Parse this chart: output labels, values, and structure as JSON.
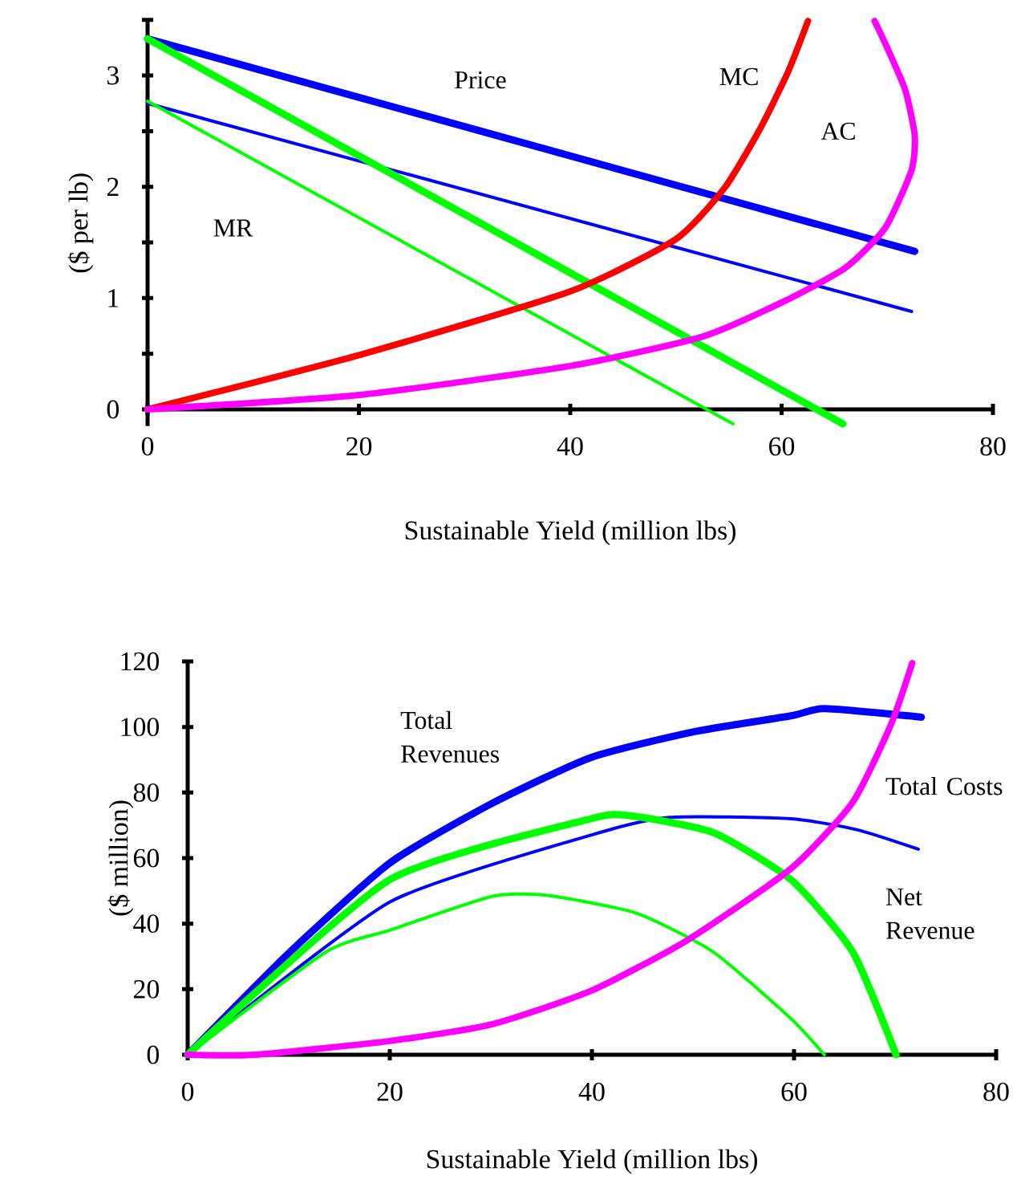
{
  "chart_data": [
    {
      "type": "line",
      "xlabel": "Sustainable Yield (million lbs)",
      "ylabel": "($ per lb)",
      "xlim": [
        0,
        80
      ],
      "xticks": [
        0,
        20,
        40,
        60,
        80
      ],
      "ylim": [
        -0.15,
        3.5
      ],
      "yticks": [
        0,
        {
          "value": 0.5,
          "label": null
        },
        1,
        {
          "value": 1.5,
          "label": null
        },
        2,
        {
          "value": 2.5,
          "label": null
        },
        3,
        {
          "value": 3.5,
          "label": null
        }
      ],
      "series": [
        {
          "name": "Price",
          "color": "#0000ff",
          "x": [
            0,
            72.6
          ],
          "values": [
            3.33,
            1.42
          ]
        },
        {
          "color": "#0000ff",
          "x": [
            0,
            72.3
          ],
          "values": [
            2.75,
            0.88
          ]
        },
        {
          "color": "#00ff00",
          "x": [
            0,
            65.8
          ],
          "values": [
            3.33,
            -0.13
          ]
        },
        {
          "name": "MR",
          "color": "#00ff00",
          "x": [
            0,
            55.4
          ],
          "values": [
            2.77,
            -0.13
          ]
        },
        {
          "name": "MC",
          "color": "#ff0000",
          "x": [
            0,
            20.1,
            40,
            50,
            54.6,
            57.9,
            60.6,
            62.5
          ],
          "values": [
            0,
            0.49,
            1.06,
            1.53,
            1.99,
            2.51,
            3.03,
            3.49
          ]
        },
        {
          "name": "AC",
          "color": "#ff00ff",
          "x": [
            0,
            20.1,
            40,
            52.4,
            60,
            66,
            69.8,
            72.3,
            72.6,
            71.7,
            69.8,
            68.8
          ],
          "values": [
            0,
            0.13,
            0.39,
            0.65,
            0.96,
            1.27,
            1.63,
            2.15,
            2.46,
            2.87,
            3.29,
            3.49
          ]
        }
      ]
    },
    {
      "type": "line",
      "xlabel": "Sustainable Yield (million lbs)",
      "ylabel": "($ million)",
      "xlim": [
        0,
        80
      ],
      "xticks": [
        0,
        20,
        40,
        60,
        80
      ],
      "ylim": [
        0,
        120
      ],
      "yticks": [
        0,
        20,
        40,
        60,
        80,
        100,
        120
      ],
      "series": [
        {
          "name": "Total Revenues",
          "color": "#0000ff",
          "x": [
            0,
            10,
            20,
            30,
            39.9,
            50,
            59.7,
            63,
            72.6
          ],
          "values": [
            0,
            31,
            58.5,
            76.5,
            90.7,
            98.5,
            103.4,
            105.6,
            103
          ]
        },
        {
          "color": "#0000ff",
          "x": [
            0,
            20,
            39.9,
            47.7,
            59.7,
            66.3,
            72.3
          ],
          "values": [
            0,
            46.6,
            67,
            72.4,
            72,
            68.6,
            62.7
          ]
        },
        {
          "name": "Net Revenue",
          "color": "#00ff00",
          "x": [
            0,
            20,
            39.9,
            43.8,
            52,
            59.7,
            65.8,
            70.1
          ],
          "values": [
            0,
            53.4,
            72,
            72.9,
            67.8,
            53.4,
            31.4,
            0
          ]
        },
        {
          "color": "#00ff00",
          "x": [
            0,
            13.7,
            20,
            30.1,
            35.6,
            44.4,
            52,
            59.7,
            63
          ],
          "values": [
            0,
            31.4,
            38,
            48.3,
            48.6,
            43.2,
            31.4,
            11,
            0
          ]
        },
        {
          "name": "Total Costs",
          "color": "#ff00ff",
          "x": [
            0,
            6.6,
            20,
            30.1,
            39.9,
            49.3,
            59.7,
            65.8,
            69.6,
            71.7
          ],
          "values": [
            0,
            0,
            4.2,
            9.3,
            19.5,
            34.7,
            56.8,
            77,
            100.8,
            119.5
          ]
        }
      ]
    }
  ]
}
